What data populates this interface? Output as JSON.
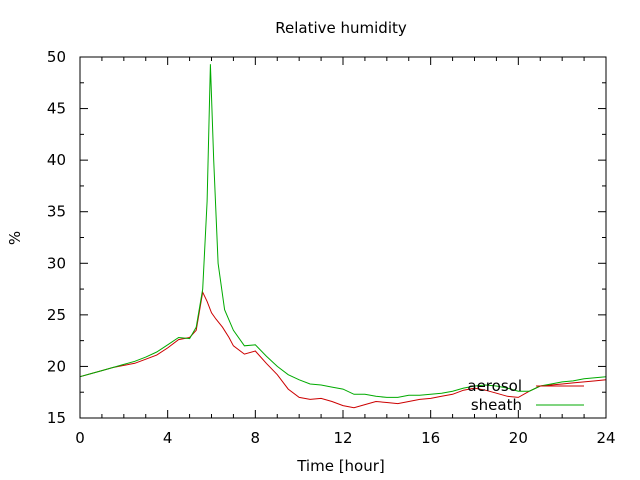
{
  "chart_data": {
    "type": "line",
    "title": "Relative humidity",
    "xlabel": "Time [hour]",
    "ylabel": "%",
    "xlim": [
      0,
      24
    ],
    "ylim": [
      15,
      50
    ],
    "xticks": [
      0,
      4,
      8,
      12,
      16,
      20,
      24
    ],
    "yticks": [
      15,
      20,
      25,
      30,
      35,
      40,
      45,
      50
    ],
    "grid": false,
    "legend_position": "bottom-right",
    "series": [
      {
        "name": "aerosol",
        "color": "#cc0000",
        "points": [
          [
            0,
            19.0
          ],
          [
            0.5,
            19.3
          ],
          [
            1,
            19.6
          ],
          [
            1.5,
            19.9
          ],
          [
            2,
            20.1
          ],
          [
            2.5,
            20.3
          ],
          [
            3,
            20.7
          ],
          [
            3.5,
            21.1
          ],
          [
            4,
            21.8
          ],
          [
            4.5,
            22.6
          ],
          [
            5,
            22.8
          ],
          [
            5.3,
            23.5
          ],
          [
            5.6,
            27.2
          ],
          [
            5.8,
            26.3
          ],
          [
            6,
            25.2
          ],
          [
            6.2,
            24.6
          ],
          [
            6.5,
            23.8
          ],
          [
            6.8,
            22.8
          ],
          [
            7,
            22.0
          ],
          [
            7.5,
            21.2
          ],
          [
            8,
            21.5
          ],
          [
            8.5,
            20.3
          ],
          [
            9,
            19.2
          ],
          [
            9.5,
            17.8
          ],
          [
            10,
            17.0
          ],
          [
            10.5,
            16.8
          ],
          [
            11,
            16.9
          ],
          [
            11.5,
            16.6
          ],
          [
            12,
            16.2
          ],
          [
            12.5,
            16.0
          ],
          [
            13,
            16.3
          ],
          [
            13.5,
            16.6
          ],
          [
            14,
            16.5
          ],
          [
            14.5,
            16.4
          ],
          [
            15,
            16.6
          ],
          [
            15.5,
            16.8
          ],
          [
            16,
            16.9
          ],
          [
            16.5,
            17.1
          ],
          [
            17,
            17.3
          ],
          [
            17.5,
            17.7
          ],
          [
            18,
            17.9
          ],
          [
            18.5,
            17.7
          ],
          [
            19,
            17.4
          ],
          [
            19.5,
            17.1
          ],
          [
            20,
            17.0
          ],
          [
            20.5,
            17.6
          ],
          [
            21,
            18.1
          ],
          [
            21.5,
            18.2
          ],
          [
            22,
            18.3
          ],
          [
            22.5,
            18.4
          ],
          [
            23,
            18.5
          ],
          [
            23.5,
            18.6
          ],
          [
            24,
            18.7
          ]
        ]
      },
      {
        "name": "sheath",
        "color": "#00aa00",
        "points": [
          [
            0,
            19.0
          ],
          [
            0.5,
            19.3
          ],
          [
            1,
            19.6
          ],
          [
            1.5,
            19.9
          ],
          [
            2,
            20.2
          ],
          [
            2.5,
            20.5
          ],
          [
            3,
            20.9
          ],
          [
            3.5,
            21.4
          ],
          [
            4,
            22.1
          ],
          [
            4.5,
            22.8
          ],
          [
            5,
            22.7
          ],
          [
            5.3,
            23.8
          ],
          [
            5.6,
            27.5
          ],
          [
            5.8,
            36.0
          ],
          [
            5.95,
            49.3
          ],
          [
            6.1,
            40.0
          ],
          [
            6.3,
            30.0
          ],
          [
            6.6,
            25.5
          ],
          [
            7,
            23.5
          ],
          [
            7.5,
            22.0
          ],
          [
            8,
            22.1
          ],
          [
            8.5,
            21.0
          ],
          [
            9,
            20.0
          ],
          [
            9.5,
            19.2
          ],
          [
            10,
            18.7
          ],
          [
            10.5,
            18.3
          ],
          [
            11,
            18.2
          ],
          [
            11.5,
            18.0
          ],
          [
            12,
            17.8
          ],
          [
            12.5,
            17.3
          ],
          [
            13,
            17.3
          ],
          [
            13.5,
            17.1
          ],
          [
            14,
            17.0
          ],
          [
            14.5,
            17.0
          ],
          [
            15,
            17.2
          ],
          [
            15.5,
            17.2
          ],
          [
            16,
            17.3
          ],
          [
            16.5,
            17.4
          ],
          [
            17,
            17.6
          ],
          [
            17.5,
            17.9
          ],
          [
            18,
            18.1
          ],
          [
            18.5,
            18.2
          ],
          [
            19,
            18.1
          ],
          [
            19.5,
            17.9
          ],
          [
            20,
            17.6
          ],
          [
            20.5,
            17.6
          ],
          [
            21,
            18.1
          ],
          [
            21.5,
            18.3
          ],
          [
            22,
            18.5
          ],
          [
            22.5,
            18.6
          ],
          [
            23,
            18.8
          ],
          [
            23.5,
            18.9
          ],
          [
            24,
            19.0
          ]
        ]
      }
    ]
  }
}
